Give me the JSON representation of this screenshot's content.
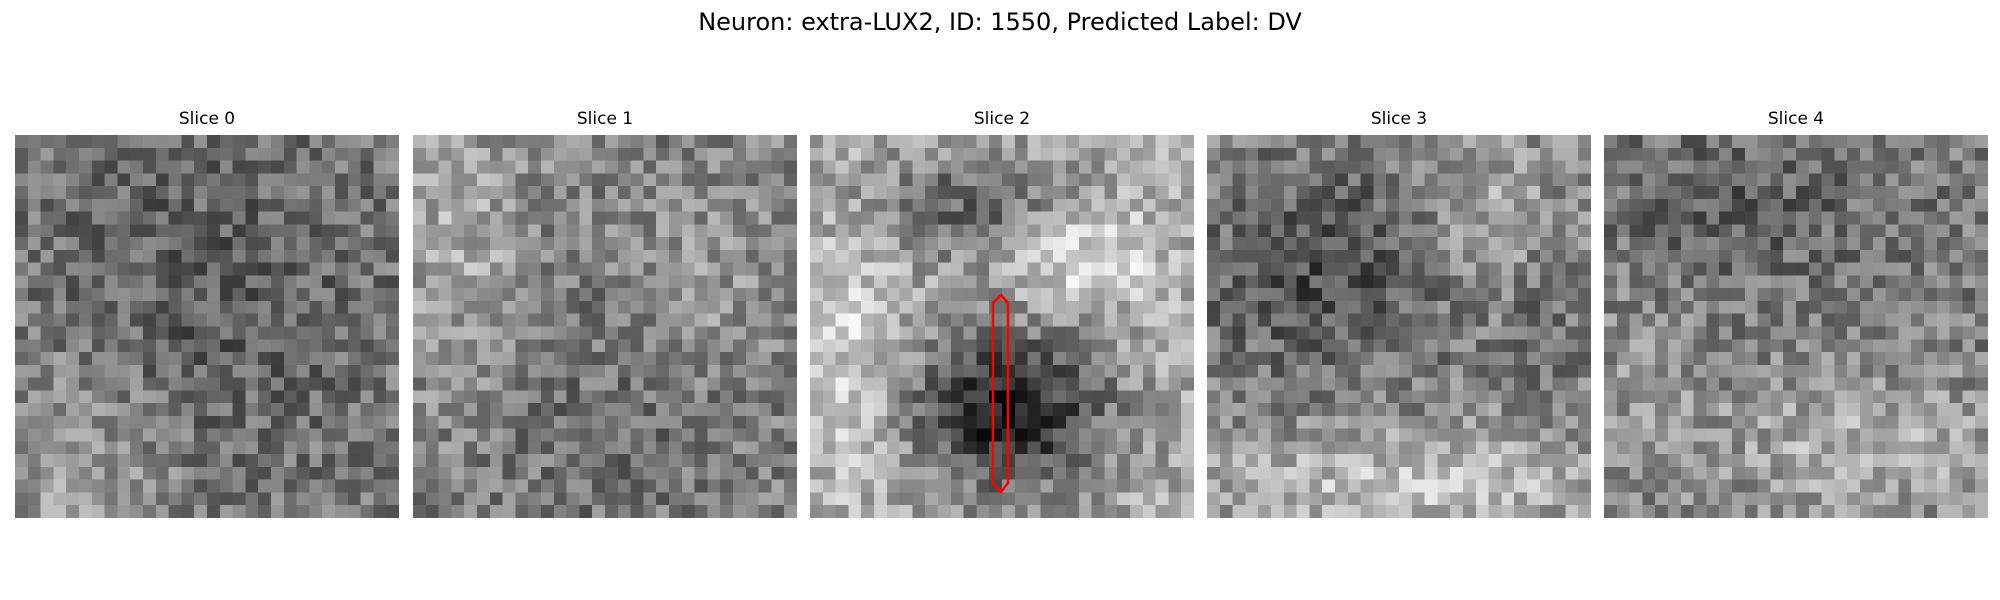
{
  "figure": {
    "title": "Neuron: extra-LUX2, ID: 1550, Predicted Label: DV"
  },
  "slices": [
    {
      "title": "Slice 0",
      "pattern": "diffuse-dark-center"
    },
    {
      "title": "Slice 1",
      "pattern": "noisy-mid"
    },
    {
      "title": "Slice 2",
      "pattern": "dark-blob-with-bright-rim"
    },
    {
      "title": "Slice 3",
      "pattern": "dark-upper-left-bright-bottom"
    },
    {
      "title": "Slice 4",
      "pattern": "noisy-bright-bottom"
    }
  ],
  "roi": {
    "slice": 2,
    "color": "#ff0000",
    "shape": "elongated-hexagon-outline"
  },
  "colormap": "grayscale",
  "grid_size": 30
}
